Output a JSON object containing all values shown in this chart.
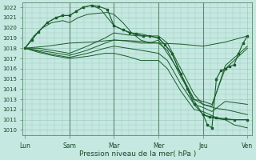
{
  "xlabel": "Pression niveau de la mer( hPa )",
  "ylim": [
    1009.5,
    1022.5
  ],
  "yticks": [
    1010,
    1011,
    1012,
    1013,
    1014,
    1015,
    1016,
    1017,
    1018,
    1019,
    1020,
    1021,
    1022
  ],
  "xtick_labels": [
    "Lun",
    "Sam",
    "Mar",
    "Mer",
    "Jeu",
    "Ven"
  ],
  "xtick_positions": [
    0,
    1,
    2,
    3,
    4,
    5
  ],
  "bg_color": "#c5e8e0",
  "grid_color": "#9dccc4",
  "line_color": "#1a5c2a",
  "vline_color": "#5a8a70",
  "vline_positions": [
    1,
    2,
    3,
    4
  ],
  "smooth_lines": [
    {
      "x": [
        0,
        0.15,
        0.3,
        0.5,
        0.7,
        0.85,
        1.0,
        1.15,
        1.3,
        1.5,
        1.7,
        1.85,
        2.0,
        2.2,
        2.4,
        2.6,
        2.8,
        3.0,
        3.15,
        3.3,
        3.5,
        3.7,
        3.85,
        4.0,
        4.1,
        4.2,
        4.3,
        4.5,
        4.7,
        5.0
      ],
      "y": [
        1018.0,
        1018.8,
        1019.6,
        1020.5,
        1021.0,
        1021.2,
        1021.2,
        1021.6,
        1022.0,
        1022.2,
        1021.8,
        1021.0,
        1020.2,
        1019.8,
        1019.5,
        1019.4,
        1019.2,
        1019.0,
        1018.3,
        1017.5,
        1015.5,
        1013.5,
        1012.5,
        1011.5,
        1011.3,
        1011.2,
        1011.1,
        1011.0,
        1011.0,
        1011.0
      ]
    },
    {
      "x": [
        0,
        0.2,
        0.4,
        0.6,
        0.85,
        1.0,
        1.2,
        1.4,
        1.6,
        1.85,
        2.0,
        2.2,
        2.4,
        2.6,
        2.8,
        3.0,
        3.2,
        3.5,
        3.8,
        4.0,
        4.15,
        4.3,
        4.5,
        4.7,
        5.0
      ],
      "y": [
        1018.0,
        1019.2,
        1020.0,
        1020.5,
        1020.7,
        1020.5,
        1021.0,
        1021.3,
        1021.4,
        1021.5,
        1021.3,
        1020.5,
        1019.5,
        1018.8,
        1018.5,
        1018.8,
        1017.5,
        1015.5,
        1013.0,
        1012.5,
        1012.3,
        1012.1,
        1012.0,
        1011.8,
        1011.5
      ]
    },
    {
      "x": [
        0,
        0.3,
        0.6,
        1.0,
        1.4,
        1.8,
        2.0,
        2.3,
        2.6,
        3.0,
        3.2,
        3.5,
        3.8,
        4.0,
        4.2,
        4.5,
        5.0
      ],
      "y": [
        1018.0,
        1018.0,
        1017.8,
        1017.5,
        1018.2,
        1019.0,
        1019.5,
        1019.3,
        1019.2,
        1019.2,
        1018.5,
        1016.0,
        1013.5,
        1012.5,
        1012.3,
        1016.3,
        1018.2
      ]
    },
    {
      "x": [
        0,
        0.3,
        0.6,
        1.0,
        1.4,
        1.8,
        2.0,
        2.3,
        2.6,
        3.0,
        3.2,
        3.5,
        3.8,
        4.0,
        4.2,
        4.5,
        5.0
      ],
      "y": [
        1018.0,
        1017.8,
        1017.6,
        1017.3,
        1017.8,
        1018.5,
        1018.8,
        1018.7,
        1018.5,
        1018.5,
        1017.8,
        1015.2,
        1013.0,
        1012.8,
        1012.5,
        1016.0,
        1018.0
      ]
    },
    {
      "x": [
        0,
        0.3,
        0.6,
        1.0,
        1.4,
        1.8,
        2.0,
        2.3,
        2.6,
        3.0,
        3.2,
        3.5,
        3.8,
        4.0,
        4.2,
        4.5,
        5.0
      ],
      "y": [
        1018.0,
        1017.7,
        1017.4,
        1017.1,
        1017.5,
        1018.0,
        1018.2,
        1018.0,
        1017.8,
        1017.5,
        1016.8,
        1014.5,
        1012.5,
        1012.2,
        1011.8,
        1012.8,
        1012.5
      ]
    },
    {
      "x": [
        0,
        0.3,
        0.6,
        1.0,
        1.4,
        1.8,
        2.0,
        2.3,
        2.6,
        3.0,
        3.2,
        3.5,
        3.8,
        4.0,
        4.15,
        4.3,
        4.5,
        4.7,
        5.0
      ],
      "y": [
        1018.0,
        1017.6,
        1017.3,
        1017.0,
        1017.2,
        1017.5,
        1017.5,
        1017.2,
        1016.8,
        1016.8,
        1016.0,
        1013.8,
        1012.0,
        1011.8,
        1011.5,
        1011.2,
        1011.0,
        1010.5,
        1010.2
      ]
    },
    {
      "x": [
        0,
        0.5,
        1.0,
        1.5,
        2.0,
        2.5,
        3.0,
        3.5,
        4.0,
        4.5,
        5.0
      ],
      "y": [
        1018.0,
        1018.2,
        1018.5,
        1018.6,
        1018.8,
        1018.7,
        1018.5,
        1018.4,
        1018.2,
        1018.6,
        1019.2
      ]
    }
  ],
  "marker_lines": [
    {
      "x": [
        0,
        0.15,
        0.3,
        0.5,
        0.7,
        0.85,
        1.0,
        1.15,
        1.3,
        1.5,
        1.65,
        1.85,
        2.0,
        2.2,
        2.35,
        2.5,
        2.65,
        2.8,
        3.0,
        3.15,
        3.3,
        3.5,
        3.65,
        3.8,
        4.0,
        4.15,
        4.3,
        4.5,
        4.7,
        5.0
      ],
      "y": [
        1018.0,
        1018.8,
        1019.6,
        1020.5,
        1021.0,
        1021.2,
        1021.2,
        1021.6,
        1022.0,
        1022.2,
        1022.1,
        1021.8,
        1020.2,
        1019.8,
        1019.5,
        1019.4,
        1019.2,
        1019.2,
        1019.0,
        1018.3,
        1017.5,
        1015.5,
        1014.0,
        1012.5,
        1011.5,
        1011.3,
        1011.2,
        1011.1,
        1011.0,
        1011.0
      ]
    },
    {
      "x": [
        4.0,
        4.1,
        4.2,
        4.3,
        4.4,
        4.5,
        4.6,
        4.7,
        4.8,
        4.9,
        5.0
      ],
      "y": [
        1011.5,
        1010.5,
        1010.2,
        1015.0,
        1015.8,
        1016.0,
        1016.2,
        1016.4,
        1017.5,
        1018.5,
        1019.2
      ]
    }
  ]
}
